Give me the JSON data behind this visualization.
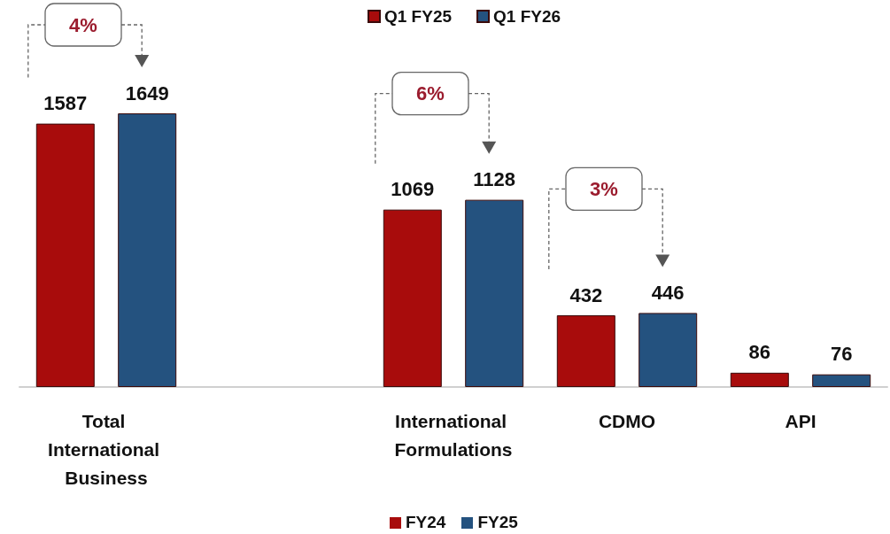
{
  "chart_data": {
    "type": "bar",
    "categories": [
      "Total International Business",
      null,
      "International Formulations",
      "CDMO",
      "API"
    ],
    "series": [
      {
        "name": "Q1 FY25",
        "color": "#a80c0c",
        "values": [
          1587,
          null,
          1069,
          432,
          86
        ]
      },
      {
        "name": "Q1 FY26",
        "color": "#24527f",
        "values": [
          1649,
          null,
          1128,
          446,
          76
        ]
      }
    ],
    "data_labels": true,
    "legend": "top",
    "annotations": [
      "4%",
      "6%",
      "3%",
      "FY24",
      "FY25"
    ]
  }
}
